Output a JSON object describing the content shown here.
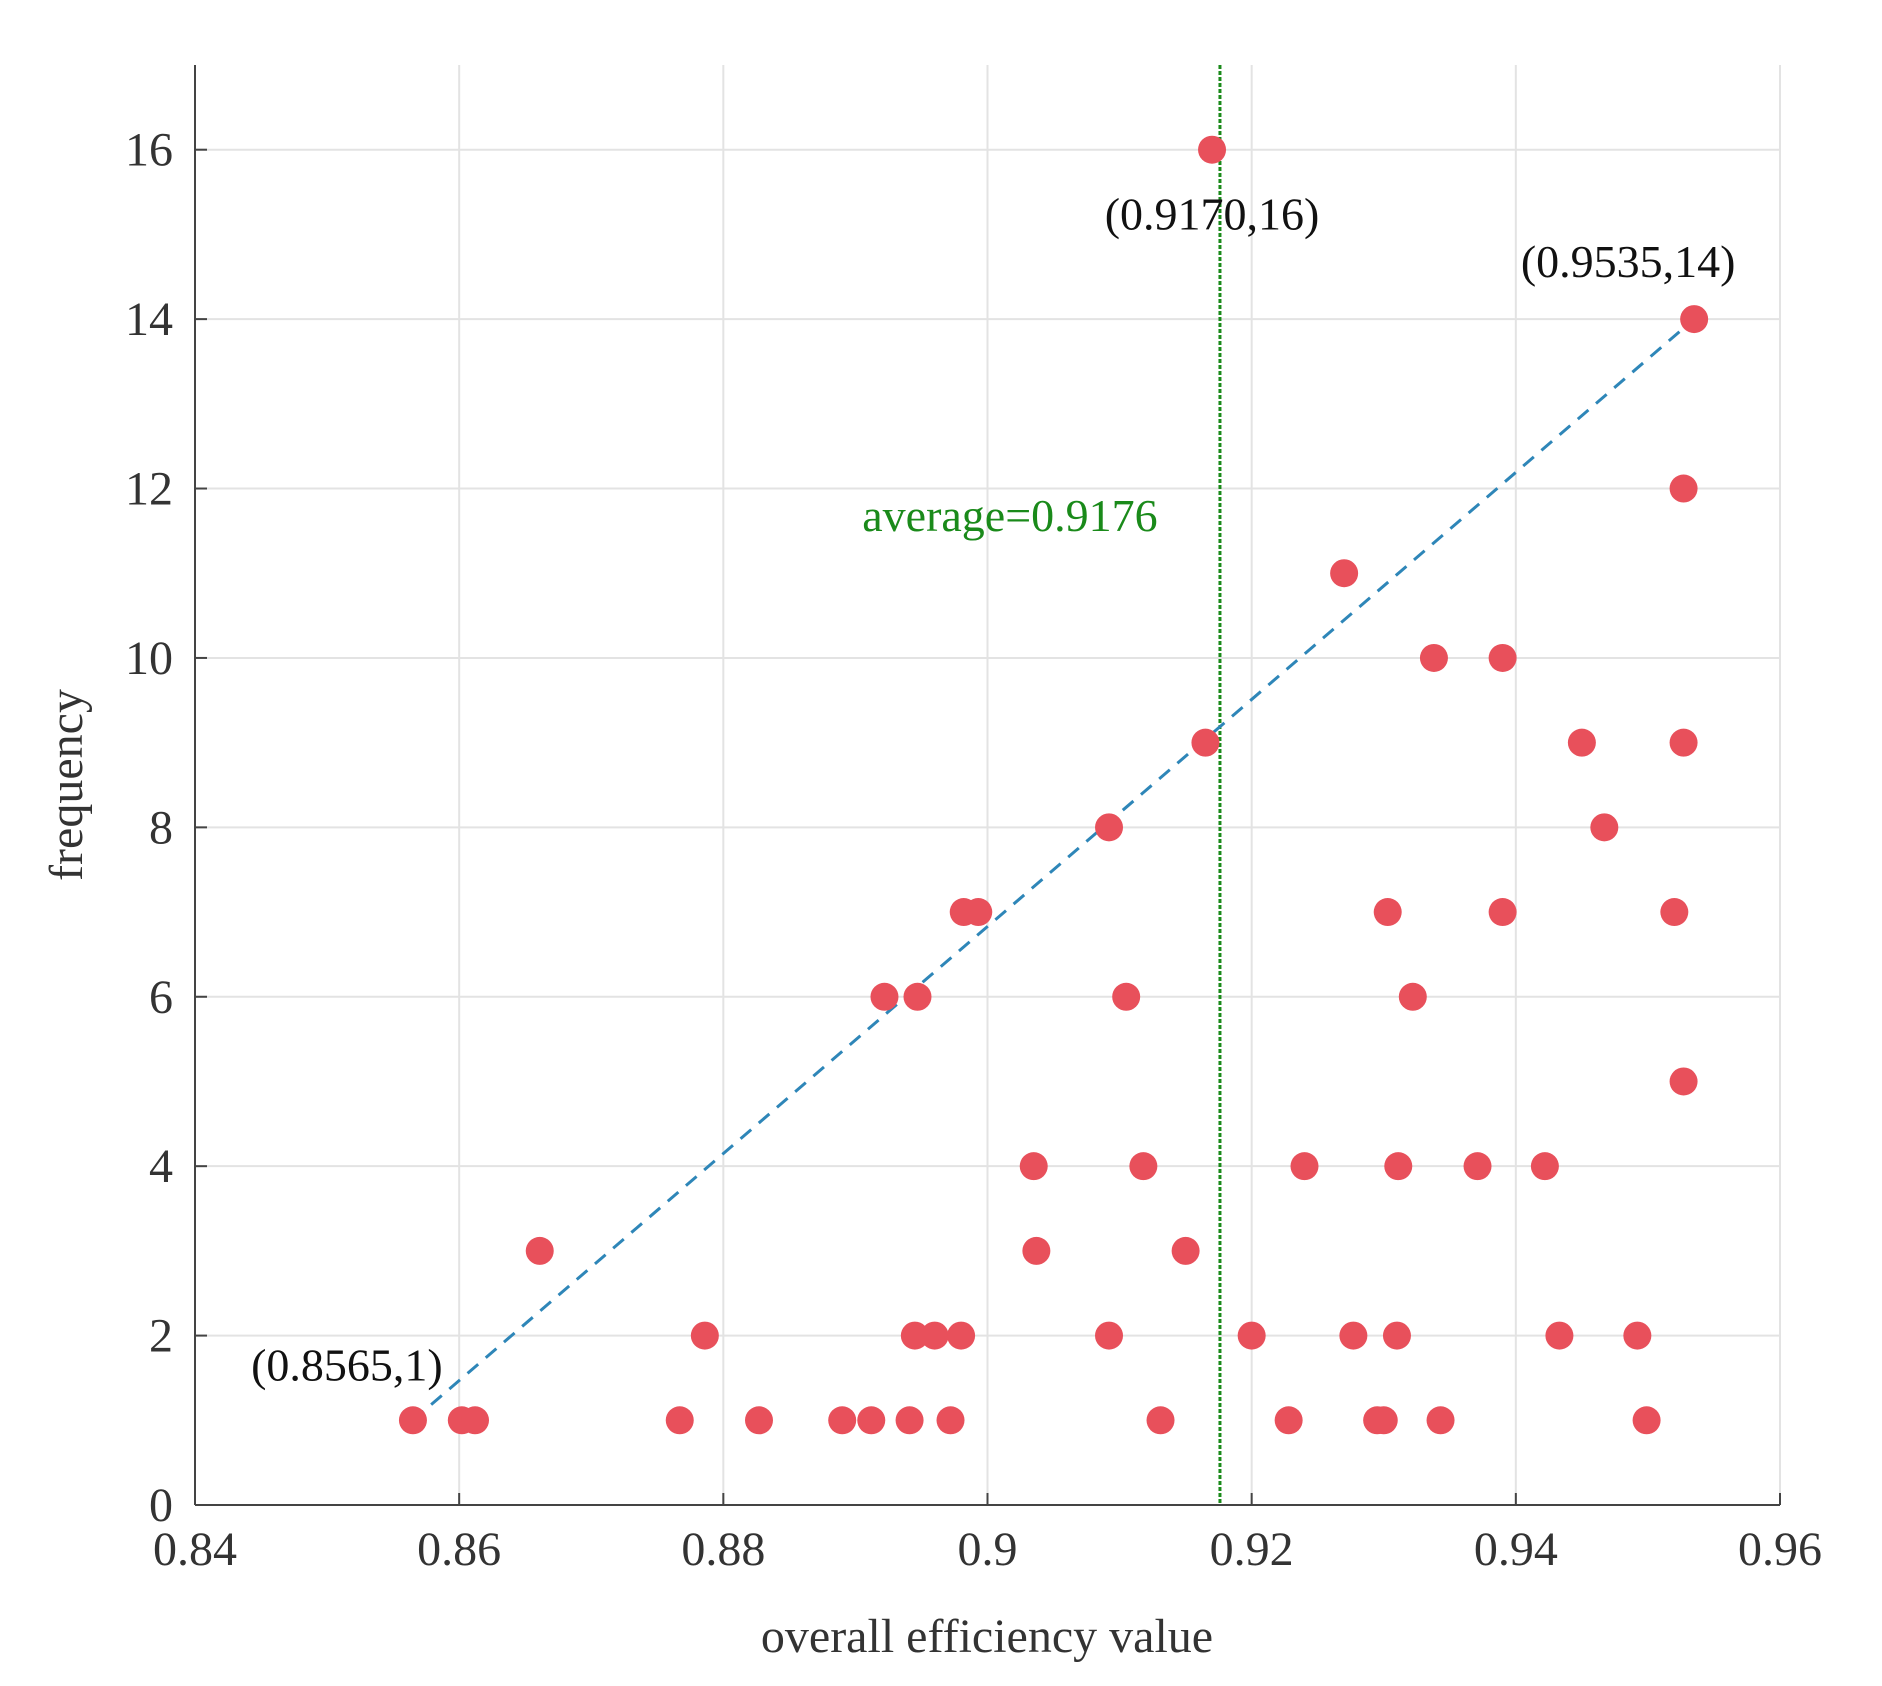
{
  "chart_data": {
    "type": "scatter",
    "title": "",
    "xlabel": "overall efficiency value",
    "ylabel": "frequency",
    "xlim": [
      0.84,
      0.96
    ],
    "ylim": [
      0,
      17
    ],
    "xticks": [
      0.84,
      0.86,
      0.88,
      0.9,
      0.92,
      0.94,
      0.96
    ],
    "xtick_labels": [
      "0.84",
      "0.86",
      "0.88",
      "0.9",
      "0.92",
      "0.94",
      "0.96"
    ],
    "yticks": [
      0,
      2,
      4,
      6,
      8,
      10,
      12,
      14,
      16
    ],
    "ytick_labels": [
      "0",
      "2",
      "4",
      "6",
      "8",
      "10",
      "12",
      "14",
      "16"
    ],
    "grid": true,
    "point_color": "#e8505b",
    "points": [
      {
        "x": 0.8565,
        "y": 1
      },
      {
        "x": 0.8602,
        "y": 1
      },
      {
        "x": 0.8612,
        "y": 1
      },
      {
        "x": 0.8661,
        "y": 3
      },
      {
        "x": 0.8767,
        "y": 1
      },
      {
        "x": 0.8786,
        "y": 2
      },
      {
        "x": 0.8827,
        "y": 1
      },
      {
        "x": 0.889,
        "y": 1
      },
      {
        "x": 0.8912,
        "y": 1
      },
      {
        "x": 0.8922,
        "y": 6
      },
      {
        "x": 0.8947,
        "y": 6
      },
      {
        "x": 0.8941,
        "y": 1
      },
      {
        "x": 0.8945,
        "y": 2
      },
      {
        "x": 0.896,
        "y": 2
      },
      {
        "x": 0.8972,
        "y": 1
      },
      {
        "x": 0.898,
        "y": 2
      },
      {
        "x": 0.8982,
        "y": 7
      },
      {
        "x": 0.8993,
        "y": 7
      },
      {
        "x": 0.9035,
        "y": 4
      },
      {
        "x": 0.9037,
        "y": 3
      },
      {
        "x": 0.9092,
        "y": 2
      },
      {
        "x": 0.9092,
        "y": 8
      },
      {
        "x": 0.9105,
        "y": 6
      },
      {
        "x": 0.9118,
        "y": 4
      },
      {
        "x": 0.9131,
        "y": 1
      },
      {
        "x": 0.915,
        "y": 3
      },
      {
        "x": 0.9165,
        "y": 9
      },
      {
        "x": 0.917,
        "y": 16
      },
      {
        "x": 0.92,
        "y": 2
      },
      {
        "x": 0.9228,
        "y": 1
      },
      {
        "x": 0.924,
        "y": 4
      },
      {
        "x": 0.927,
        "y": 11
      },
      {
        "x": 0.9277,
        "y": 2
      },
      {
        "x": 0.9295,
        "y": 1
      },
      {
        "x": 0.93,
        "y": 1
      },
      {
        "x": 0.9303,
        "y": 7
      },
      {
        "x": 0.931,
        "y": 2
      },
      {
        "x": 0.9311,
        "y": 4
      },
      {
        "x": 0.9322,
        "y": 6
      },
      {
        "x": 0.9338,
        "y": 10
      },
      {
        "x": 0.9343,
        "y": 1
      },
      {
        "x": 0.9371,
        "y": 4
      },
      {
        "x": 0.939,
        "y": 10
      },
      {
        "x": 0.939,
        "y": 7
      },
      {
        "x": 0.9422,
        "y": 4
      },
      {
        "x": 0.9433,
        "y": 2
      },
      {
        "x": 0.945,
        "y": 9
      },
      {
        "x": 0.9467,
        "y": 8
      },
      {
        "x": 0.9492,
        "y": 2
      },
      {
        "x": 0.9499,
        "y": 1
      },
      {
        "x": 0.952,
        "y": 7
      },
      {
        "x": 0.9527,
        "y": 12
      },
      {
        "x": 0.9527,
        "y": 9
      },
      {
        "x": 0.9527,
        "y": 5
      },
      {
        "x": 0.9535,
        "y": 14
      }
    ],
    "trend_line": {
      "color": "#2e86b8",
      "x": [
        0.8565,
        0.9535
      ],
      "y": [
        1,
        14
      ]
    },
    "average_line": {
      "value": 0.9176,
      "color": "#1a8a1a"
    },
    "annotations": [
      {
        "text": "(0.9170,16)",
        "x": 0.917,
        "y": 16,
        "color": "#111111"
      },
      {
        "text": "(0.9535,14)",
        "x": 0.9535,
        "y": 14,
        "color": "#111111"
      },
      {
        "text": "(0.8565,1)",
        "x": 0.8565,
        "y": 1,
        "color": "#111111"
      },
      {
        "text": "average=0.9176",
        "x": 0.9176,
        "y": 11.5,
        "color": "#1a8a1a"
      }
    ]
  }
}
